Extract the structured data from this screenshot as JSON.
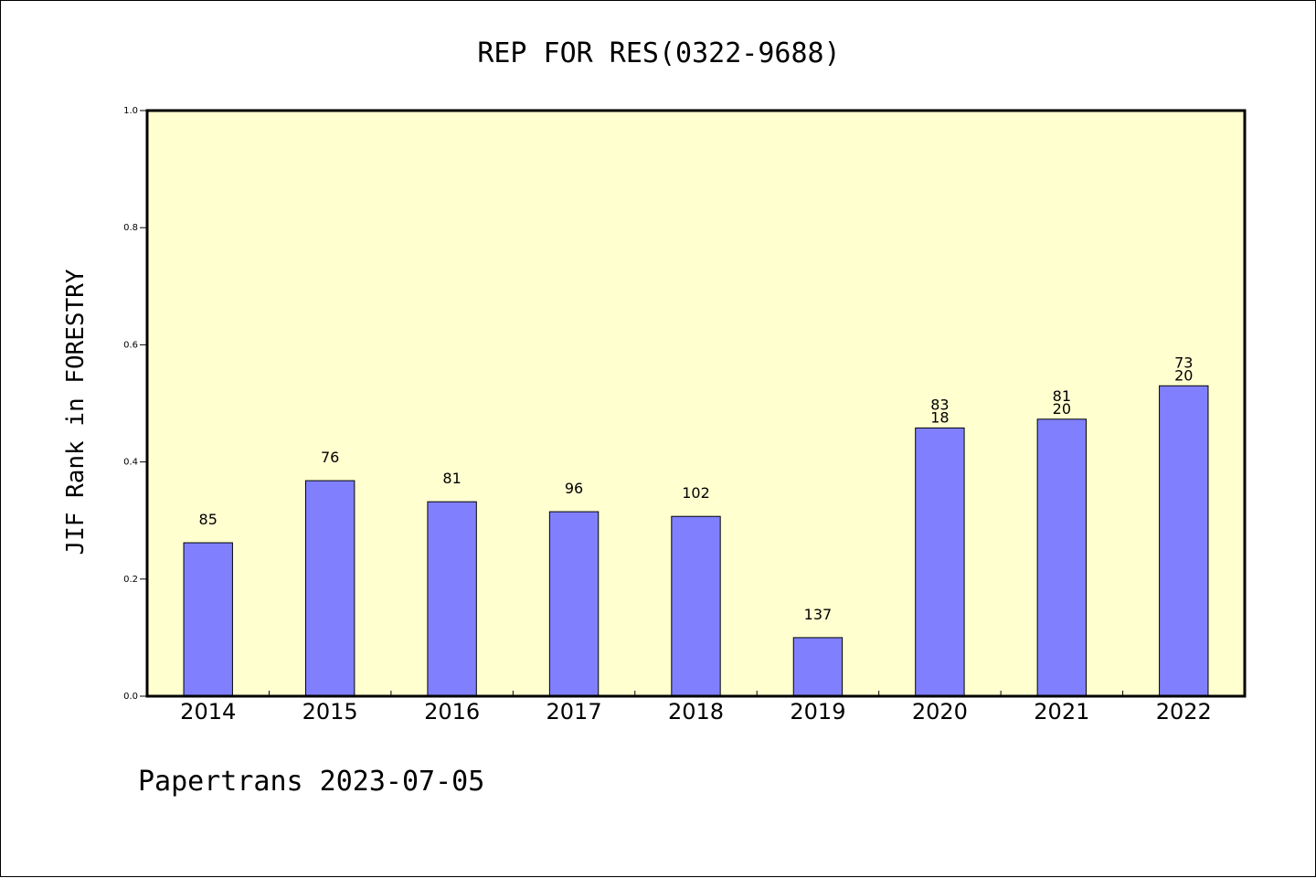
{
  "chart_data": {
    "type": "bar",
    "title": "REP FOR RES(0322-9688)",
    "xlabel": "",
    "ylabel": "JIF Rank in FORESTRY",
    "ylim": [
      0,
      1.0
    ],
    "y_ticks": [
      "0.0",
      "0.2",
      "0.4",
      "0.6",
      "0.8",
      "1.0"
    ],
    "categories": [
      "2014",
      "2015",
      "2016",
      "2017",
      "2018",
      "2019",
      "2020",
      "2021",
      "2022"
    ],
    "values": [
      0.262,
      0.368,
      0.332,
      0.315,
      0.307,
      0.1,
      0.458,
      0.473,
      0.53
    ],
    "labels_top": [
      "",
      "",
      "",
      "",
      "",
      "",
      "83",
      "81",
      "73"
    ],
    "labels_bottom": [
      "85",
      "76",
      "81",
      "96",
      "102",
      "137",
      "18",
      "20",
      "20"
    ],
    "grid": false,
    "legend": "none"
  },
  "footer": "Papertrans 2023-07-05",
  "colors": {
    "plot_background": "#ffffd0",
    "bar_fill": "#8080ff",
    "bar_stroke": "#000000",
    "axis": "#000000",
    "page_background": "#ffffff"
  }
}
